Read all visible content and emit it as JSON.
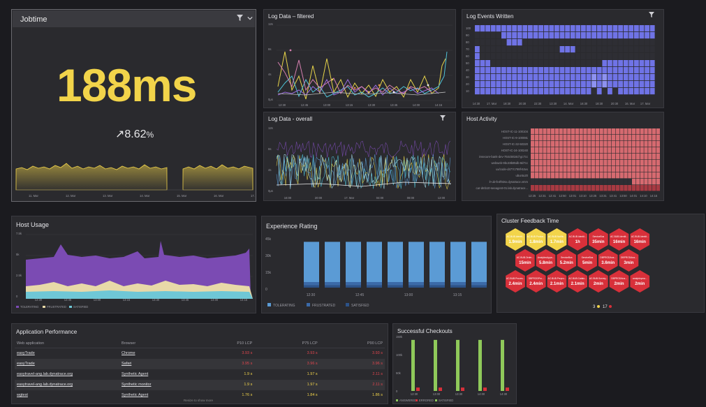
{
  "jobtime": {
    "title": "Jobtime",
    "value": "188ms",
    "change": "8.62",
    "change_unit": "%",
    "x_ticks": [
      "11. Mar",
      "12. Mar",
      "13. Mar",
      "14. Mar",
      "15. Mar",
      "16. Mar",
      "17. Mar"
    ]
  },
  "log_filtered": {
    "title": "Log Data – filtered",
    "y_ticks": [
      "12s",
      "8s",
      "4s",
      "0μs"
    ],
    "x_ticks": [
      "12:30",
      "12:45",
      "13:00",
      "13:15",
      "13:30",
      "13:45",
      "14:00",
      "14:15"
    ]
  },
  "log_events": {
    "title": "Log Events Written",
    "y_ticks": [
      "100",
      "90",
      "80",
      "70",
      "60",
      "50",
      "40",
      "30",
      "20",
      "10"
    ],
    "x_ticks": [
      "14:30",
      "17. Mar",
      "18:30",
      "20:30",
      "22:30",
      "13:30",
      "14. Mar",
      "16:30",
      "18:30",
      "20:30",
      "16. Mar",
      "17. Mar"
    ]
  },
  "log_overall": {
    "title": "Log Data - overall",
    "y_ticks": [
      "12s",
      "8s",
      "4s",
      "0μs"
    ],
    "x_ticks": [
      "16:00",
      "20:00",
      "17. Mar",
      "04:00",
      "08:00",
      "12:00"
    ]
  },
  "host_activity": {
    "title": "Host Activity",
    "hosts": [
      "HOST-IC-11-100104",
      "HOST-IC-9-100081",
      "HOST-IC-32-50320",
      "HOST-IC-24-100240",
      "insecure-bank-dev-764c5816cf-gc7cc",
      "webweb-9bc48b85db-8d7cc",
      "ux/code-d477c799f-tt4vx",
      "ubuntu20",
      "lr-ub-fe4f92sx.dynatrace.vmm",
      "car-dmb10-seeagent-01.lab.dynatrace..."
    ],
    "x_ticks": [
      "12:25",
      "12:31",
      "12:41",
      "12:50",
      "13:01",
      "13:10",
      "13:25",
      "13:31",
      "13:41",
      "13:50",
      "14:01",
      "14:10",
      "14:15"
    ]
  },
  "host_usage": {
    "title": "Host Usage",
    "y_ticks": [
      "7.5k",
      "5k",
      "2.5k",
      "0"
    ],
    "x_ticks": [
      "12:30",
      "12:45",
      "13:00",
      "13:15",
      "13:30",
      "13:45",
      "14:00",
      "14:15"
    ],
    "legend": [
      "TOLERATING",
      "FRUSTRATED",
      "SATISFIED"
    ]
  },
  "experience": {
    "title": "Experience Rating",
    "y_ticks": [
      "45k",
      "30k",
      "15k",
      "0"
    ],
    "x_ticks": [
      "12:30",
      "12:45",
      "13:00",
      "13:15"
    ],
    "legend": [
      "TOLERATING",
      "FRUSTRATED",
      "SATISFIED"
    ]
  },
  "cluster": {
    "title": "Cluster Feedback Time",
    "hexes": [
      {
        "name": "AC.BUB.Identit...",
        "value": "1.9min",
        "status": "warn"
      },
      {
        "name": "AC.BUB.Produc...",
        "value": "1.8min",
        "status": "warn"
      },
      {
        "name": "AC.BUB.Notific...",
        "value": "1.7min",
        "status": "warn"
      },
      {
        "name": "AC.BUB.Identit...",
        "value": "1h",
        "status": "bad"
      },
      {
        "name": "ServiceBus",
        "value": "35min",
        "status": "bad"
      },
      {
        "name": "AC.BUB.Identit...",
        "value": "16min",
        "status": "bad"
      },
      {
        "name": "AC.BUB.Identit...",
        "value": "16min",
        "status": "bad"
      },
      {
        "name": "AC.BUB.Order...",
        "value": "15min",
        "status": "bad"
      },
      {
        "name": "AnalyticsAppa...",
        "value": "5.8min",
        "status": "bad"
      },
      {
        "name": "ServiceBus",
        "value": "5.2min",
        "status": "bad"
      },
      {
        "name": "ServiceBus",
        "value": "5min",
        "status": "bad"
      },
      {
        "name": "DBPRODAna...",
        "value": "3.6min",
        "status": "bad"
      },
      {
        "name": "DBPRODAna...",
        "value": "3min",
        "status": "bad"
      },
      {
        "name": "AC.BUB.Proces...",
        "value": "2.4min",
        "status": "bad"
      },
      {
        "name": "DBPRODPro...",
        "value": "2.4min",
        "status": "bad"
      },
      {
        "name": "AC.BUB.Prepro...",
        "value": "2.1min",
        "status": "bad"
      },
      {
        "name": "AC.BUB.Catalo...",
        "value": "2.1min",
        "status": "bad"
      },
      {
        "name": "AC.BUB.Survey...",
        "value": "2min",
        "status": "bad"
      },
      {
        "name": "DBPRODAna...",
        "value": "2min",
        "status": "bad"
      },
      {
        "name": "andqtdvyma...",
        "value": "2min",
        "status": "bad"
      }
    ],
    "warn_count": "3",
    "bad_count": "17"
  },
  "app_perf": {
    "title": "Application Performance",
    "headers": [
      "Web application",
      "Browser",
      "P10 LCP",
      "P75 LCP",
      "P90 LCP"
    ],
    "rows": [
      {
        "app": "easyTrade",
        "browser": "Chrome",
        "p10": "3.93 s",
        "p75": "3.93 s",
        "p90": "3.93 s"
      },
      {
        "app": "easyTrade",
        "browser": "Safari",
        "p10": "3.95 s",
        "p75": "3.96 s",
        "p90": "3.96 s"
      },
      {
        "app": "easytravel-ang.lab.dynatrace.org",
        "browser": "Synthetic Agent",
        "p10": "1.9 s",
        "p75": "1.97 s",
        "p90": "2.11 s"
      },
      {
        "app": "easytravel-ang.lab.dynatrace.org",
        "browser": "Synthetic monitor",
        "p10": "1.9 s",
        "p75": "1.97 s",
        "p90": "2.11 s"
      },
      {
        "app": "wgtest",
        "browser": "Synthetic Agent",
        "p10": "1.76 s",
        "p75": "1.84 s",
        "p90": "1.86 s"
      }
    ],
    "footer": "Resize to show more"
  },
  "checkouts": {
    "title": "Successful Checkouts",
    "y_ticks": [
      "150k",
      "100k",
      "50k",
      "0"
    ],
    "x_ticks": [
      "12:30",
      "13:00",
      "13:30",
      "14:00",
      "14:30"
    ],
    "legend": [
      "ANSWERED",
      "ERRORED",
      "SATISFIED"
    ]
  },
  "chart_data": [
    {
      "type": "area",
      "title": "Experience Rating",
      "categories": [
        "12:30",
        "12:45",
        "13:00",
        "13:15"
      ],
      "series": [
        {
          "name": "TOLERATING",
          "values": [
            36000,
            36000,
            36000,
            36000
          ]
        },
        {
          "name": "FRUSTRATED",
          "values": [
            3000,
            3000,
            3000,
            3000
          ]
        },
        {
          "name": "SATISFIED",
          "values": [
            2000,
            2000,
            2000,
            2000
          ]
        }
      ],
      "ylim": [
        0,
        45000
      ]
    },
    {
      "type": "bar",
      "title": "Successful Checkouts",
      "categories": [
        "12:30",
        "13:00",
        "13:30",
        "14:00",
        "14:30"
      ],
      "series": [
        {
          "name": "ANSWERED",
          "values": [
            150000,
            150000,
            150000,
            150000,
            150000
          ]
        },
        {
          "name": "ERRORED",
          "values": [
            10000,
            10000,
            10000,
            10000,
            10000
          ]
        }
      ],
      "ylim": [
        0,
        160000
      ]
    }
  ],
  "colors": {
    "yellow": "#f2d44a",
    "purple": "#7b4bb3",
    "blue": "#5b9bd5",
    "tile_blue": "#6f73e6",
    "red_hex": "#d8303a",
    "host_red": "#d66a70",
    "green": "#8fc95a"
  }
}
